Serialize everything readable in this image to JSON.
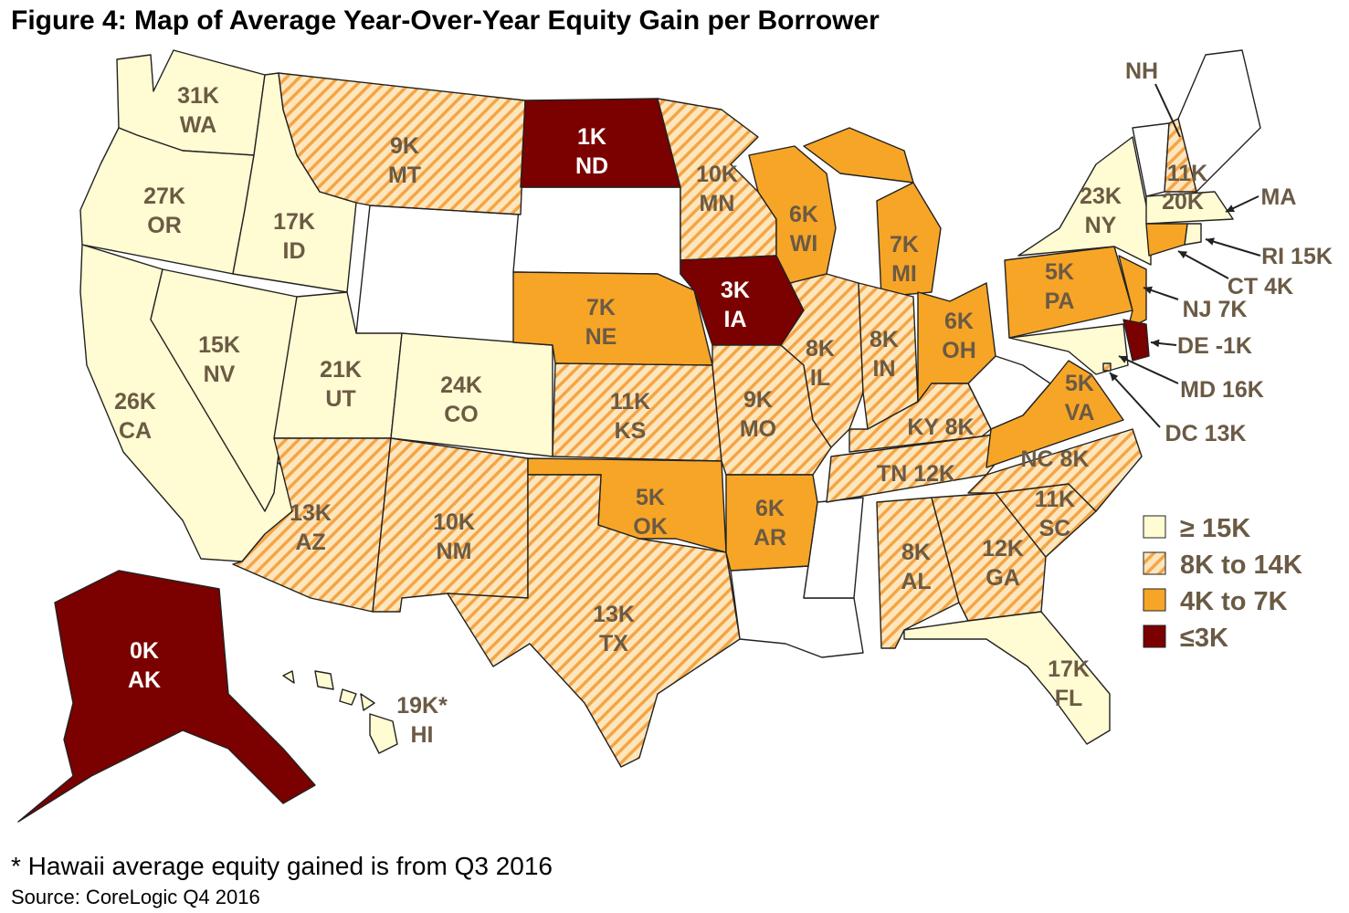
{
  "title": "Figure 4: Map of Average Year-Over-Year Equity Gain per Borrower",
  "legend": [
    {
      "label": "≥ 15K",
      "fill": "#fffbd2"
    },
    {
      "label": "8K to 14K",
      "fill": "#fde6bd",
      "stripe": "#f4a545"
    },
    {
      "label": "4K to 7K",
      "fill": "#f7a526"
    },
    {
      "label": "≤3K",
      "fill": "#7b0000"
    }
  ],
  "states": [
    {
      "lines": [
        "31K",
        "WA"
      ],
      "bin": 0
    },
    {
      "lines": [
        "27K",
        "OR"
      ],
      "bin": 0
    },
    {
      "lines": [
        "26K",
        "CA"
      ],
      "bin": 0
    },
    {
      "lines": [
        "15K",
        "NV"
      ],
      "bin": 0
    },
    {
      "lines": [
        "17K",
        "ID"
      ],
      "bin": 0
    },
    {
      "lines": [
        "9K",
        "MT"
      ],
      "bin": 1
    },
    {
      "lines": [
        "21K",
        "UT"
      ],
      "bin": 0
    },
    {
      "lines": [
        "24K",
        "CO"
      ],
      "bin": 0
    },
    {
      "lines": [
        "13K",
        "AZ"
      ],
      "bin": 1
    },
    {
      "lines": [
        "10K",
        "NM"
      ],
      "bin": 1
    },
    {
      "lines": [
        "1K",
        "ND"
      ],
      "bin": 3
    },
    {
      "lines": [
        "7K",
        "NE"
      ],
      "bin": 2
    },
    {
      "lines": [
        "11K",
        "KS"
      ],
      "bin": 1
    },
    {
      "lines": [
        "5K",
        "OK"
      ],
      "bin": 2
    },
    {
      "lines": [
        "13K",
        "TX"
      ],
      "bin": 1
    },
    {
      "lines": [
        "10K",
        "MN"
      ],
      "bin": 1
    },
    {
      "lines": [
        "3K",
        "IA"
      ],
      "bin": 3
    },
    {
      "lines": [
        "9K",
        "MO"
      ],
      "bin": 1
    },
    {
      "lines": [
        "6K",
        "AR"
      ],
      "bin": 2
    },
    {
      "lines": [
        "6K",
        "WI"
      ],
      "bin": 2
    },
    {
      "lines": [
        "8K",
        "IL"
      ],
      "bin": 1
    },
    {
      "lines": [
        "7K",
        "MI"
      ],
      "bin": 2
    },
    {
      "lines": [
        "8K",
        "IN"
      ],
      "bin": 1
    },
    {
      "lines": [
        "6K",
        "OH"
      ],
      "bin": 2
    },
    {
      "lines": [
        "KY 8K"
      ],
      "bin": 1
    },
    {
      "lines": [
        "TN 12K"
      ],
      "bin": 1
    },
    {
      "lines": [
        "8K",
        "AL"
      ],
      "bin": 1
    },
    {
      "lines": [
        "12K",
        "GA"
      ],
      "bin": 1
    },
    {
      "lines": [
        "17K",
        "FL"
      ],
      "bin": 0
    },
    {
      "lines": [
        "11K",
        "SC"
      ],
      "bin": 1
    },
    {
      "lines": [
        "NC 8K"
      ],
      "bin": 1
    },
    {
      "lines": [
        "5K",
        "VA"
      ],
      "bin": 2
    },
    {
      "lines": [
        "5K",
        "PA"
      ],
      "bin": 2
    },
    {
      "lines": [
        "23K",
        "NY"
      ],
      "bin": 0
    },
    {
      "lines": [
        "11K",
        "NH"
      ],
      "bin": 1
    },
    {
      "lines": [
        "20K",
        "MA"
      ],
      "bin": 0
    },
    {
      "lines": [
        "RI 15K"
      ],
      "bin": 0
    },
    {
      "lines": [
        "CT 4K"
      ],
      "bin": 2
    },
    {
      "lines": [
        "NJ 7K"
      ],
      "bin": 2
    },
    {
      "lines": [
        "DE -1K"
      ],
      "bin": 3
    },
    {
      "lines": [
        "MD 16K"
      ],
      "bin": 0
    },
    {
      "lines": [
        "DC 13K"
      ],
      "bin": 1
    },
    {
      "lines": [
        "0K",
        "AK"
      ],
      "bin": 3
    },
    {
      "lines": [
        "19K*",
        "HI"
      ],
      "bin": 0
    }
  ],
  "footnote": "* Hawaii average equity gained is from Q3 2016",
  "source": "Source: CoreLogic Q4 2016"
}
